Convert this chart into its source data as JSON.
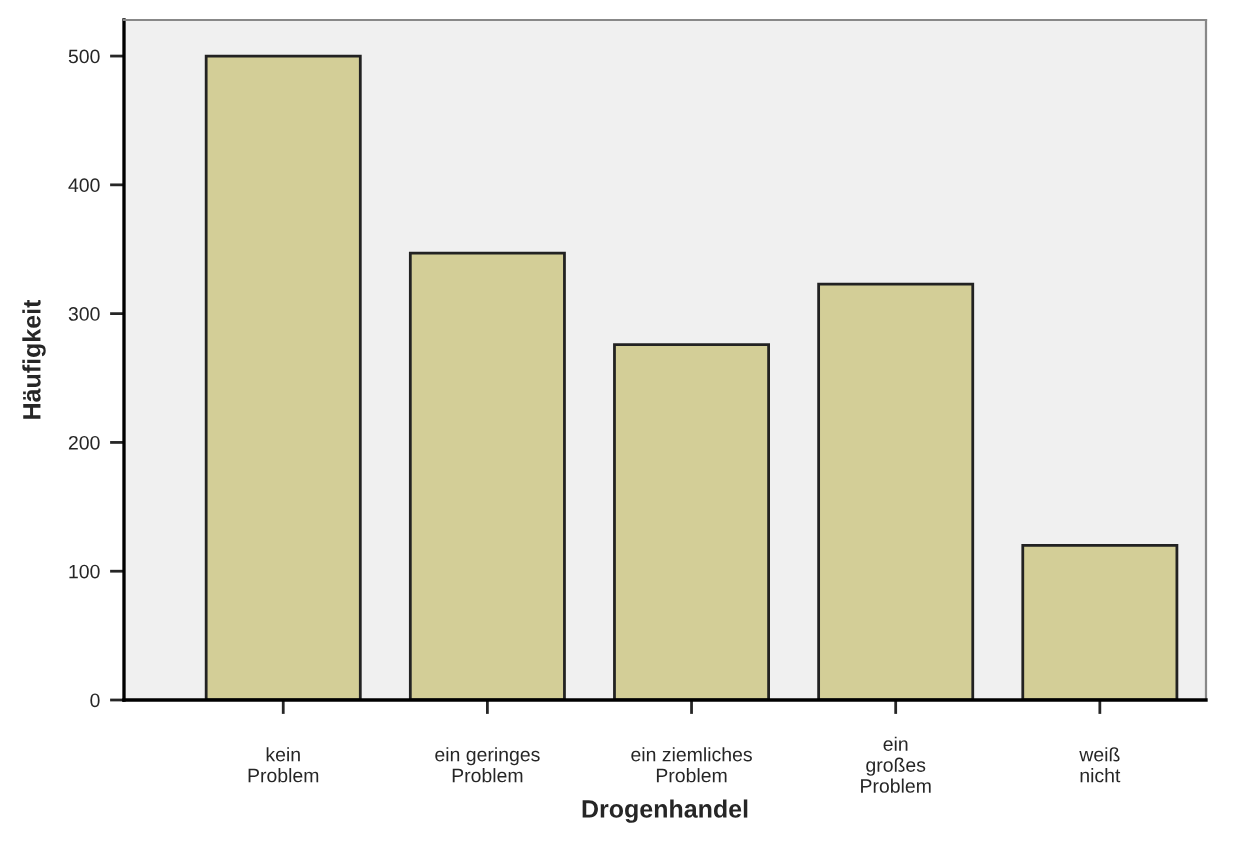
{
  "chart_data": {
    "type": "bar",
    "xlabel": "Drogenhandel",
    "ylabel": "Häufigkeit",
    "categories": [
      "kein\nProblem",
      "ein geringes\nProblem",
      "ein ziemliches\nProblem",
      "ein\ngroßes\nProblem",
      "weiß\nnicht"
    ],
    "values": [
      500,
      347,
      276,
      323,
      120
    ],
    "color": "#d3ce97",
    "ylim": [
      0,
      528
    ],
    "yticks": [
      0,
      100,
      200,
      300,
      400,
      500
    ],
    "grid": false
  }
}
